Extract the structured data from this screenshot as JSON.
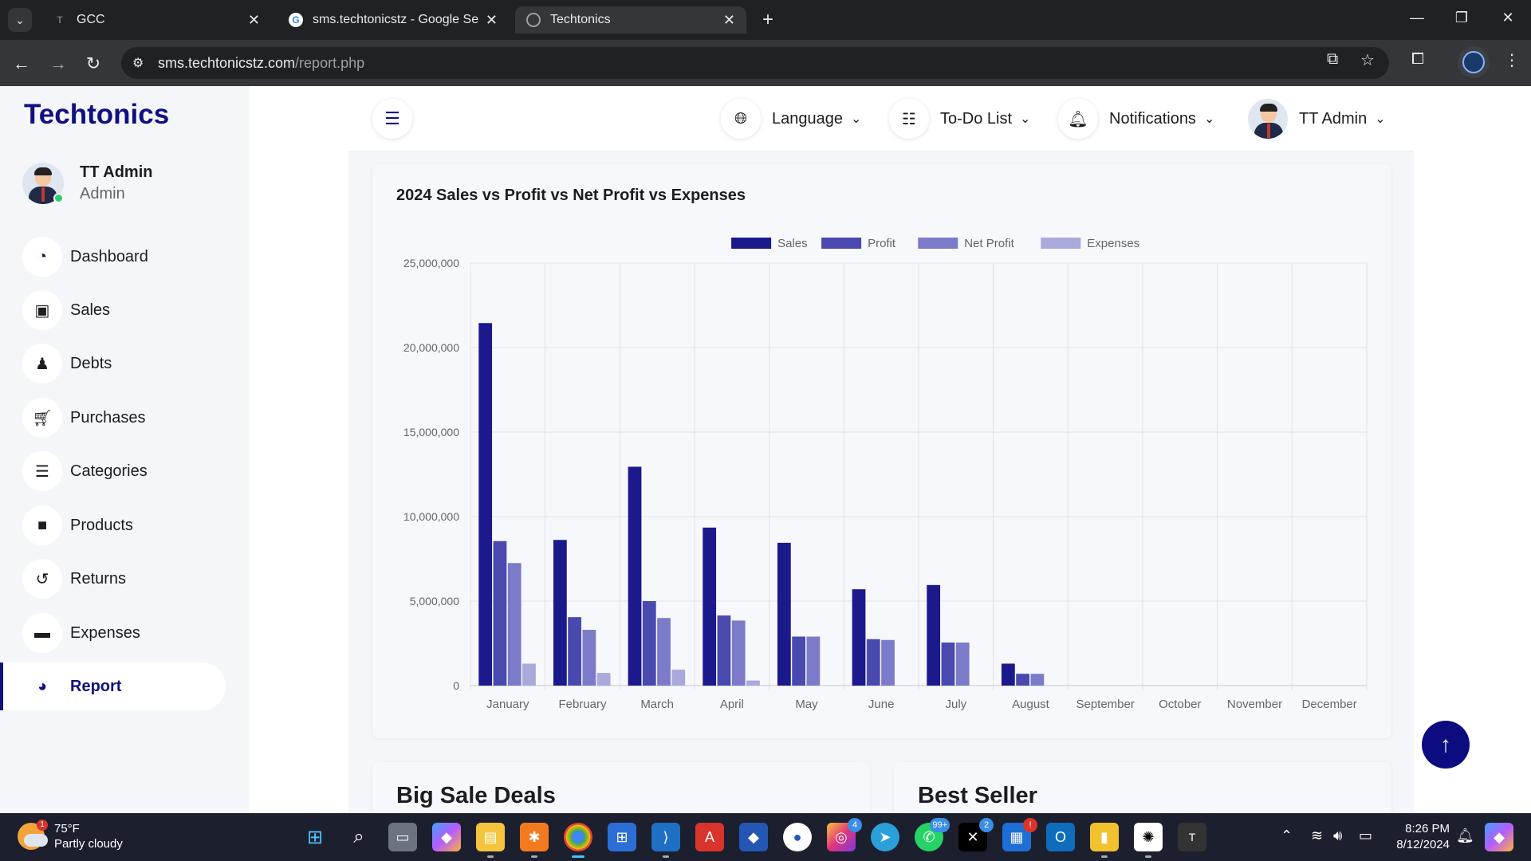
{
  "browser": {
    "tabs": [
      {
        "title": "GCC",
        "favicon": "T"
      },
      {
        "title": "sms.techtonicstz - Google Searc",
        "favicon": "G"
      },
      {
        "title": "Techtonics",
        "favicon": "globe"
      }
    ],
    "url_host": "sms.techtonicstz.com",
    "url_path": "/report.php"
  },
  "sidebar": {
    "brand": "Techtonics",
    "user_name": "TT Admin",
    "user_role": "Admin",
    "items": [
      {
        "label": "Dashboard",
        "icon": "gauge-icon"
      },
      {
        "label": "Sales",
        "icon": "money-icon"
      },
      {
        "label": "Debts",
        "icon": "user-clock-icon"
      },
      {
        "label": "Purchases",
        "icon": "cart-icon"
      },
      {
        "label": "Categories",
        "icon": "list-icon"
      },
      {
        "label": "Products",
        "icon": "box-icon"
      },
      {
        "label": "Returns",
        "icon": "undo-icon"
      },
      {
        "label": "Expenses",
        "icon": "card-icon"
      },
      {
        "label": "Report",
        "icon": "pie-icon",
        "active": true
      }
    ]
  },
  "topbar": {
    "language": "Language",
    "todo": "To-Do List",
    "notifications": "Notifications",
    "user": "TT Admin"
  },
  "sections": {
    "deals": "Big Sale Deals",
    "best": "Best Seller"
  },
  "chart_data": {
    "type": "bar",
    "title": "2024 Sales vs Profit vs Net Profit vs Expenses",
    "categories": [
      "January",
      "February",
      "March",
      "April",
      "May",
      "June",
      "July",
      "August",
      "September",
      "October",
      "November",
      "December"
    ],
    "ylim": [
      0,
      25000000
    ],
    "yticks": [
      "0",
      "5,000,000",
      "10,000,000",
      "15,000,000",
      "20,000,000",
      "25,000,000"
    ],
    "legend_position": "top",
    "grid": true,
    "series": [
      {
        "name": "Sales",
        "color": "#1a1a8c",
        "values": [
          21450000,
          8620000,
          12950000,
          9350000,
          8450000,
          5700000,
          5950000,
          1300000,
          0,
          0,
          0,
          0
        ]
      },
      {
        "name": "Profit",
        "color": "#4949b0",
        "values": [
          8550000,
          4050000,
          5000000,
          4150000,
          2900000,
          2750000,
          2550000,
          700000,
          0,
          0,
          0,
          0
        ]
      },
      {
        "name": "Net Profit",
        "color": "#7b7bca",
        "values": [
          7250000,
          3300000,
          4000000,
          3850000,
          2900000,
          2700000,
          2550000,
          700000,
          0,
          0,
          0,
          0
        ]
      },
      {
        "name": "Expenses",
        "color": "#a9a9dc",
        "values": [
          1300000,
          750000,
          950000,
          300000,
          0,
          0,
          0,
          0,
          0,
          0,
          0,
          0
        ]
      }
    ]
  },
  "taskbar": {
    "temp": "75°F",
    "condition": "Partly cloudy",
    "weather_badge": "1",
    "time": "8:26 PM",
    "date": "8/12/2024",
    "badges": {
      "instagram": "4",
      "whatsapp": "99+",
      "x": "2",
      "news": "!"
    }
  }
}
